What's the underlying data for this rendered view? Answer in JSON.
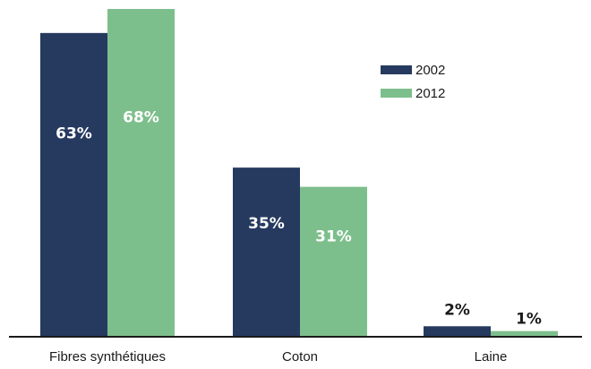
{
  "chart_data": {
    "type": "bar",
    "categories": [
      "Fibres synthétiques",
      "Coton",
      "Laine"
    ],
    "series": [
      {
        "name": "2002",
        "color": "#263a60",
        "values": [
          63,
          35,
          2
        ],
        "labels": [
          "63%",
          "35%",
          "2%"
        ]
      },
      {
        "name": "2012",
        "color": "#7dbf8c",
        "values": [
          68,
          31,
          1
        ],
        "labels": [
          "68%",
          "31%",
          "1%"
        ]
      }
    ],
    "ylim": [
      0,
      68
    ],
    "legend_position": "top-right",
    "grid": false,
    "title": "",
    "xlabel": "",
    "ylabel": ""
  }
}
